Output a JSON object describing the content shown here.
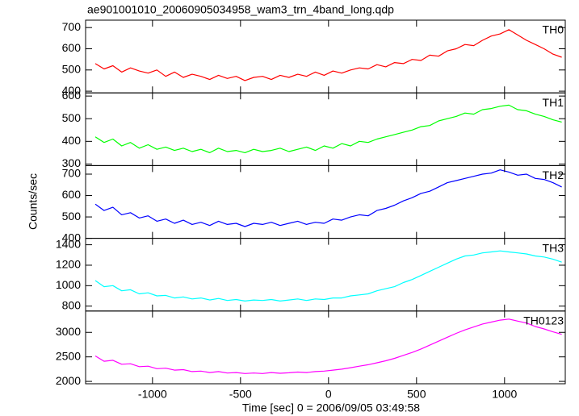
{
  "chart_data": {
    "type": "line",
    "title": "ae901001010_20060905034958_wam3_trn_4band_long.qdp",
    "xlabel": "Time [sec] 0 = 2006/09/05 03:49:58",
    "ylabel": "Counts/sec",
    "xlim": [
      -1380,
      1345
    ],
    "xticks": [
      -1000,
      -500,
      0,
      500,
      1000
    ],
    "x": [
      -1325,
      -1275,
      -1225,
      -1175,
      -1125,
      -1075,
      -1025,
      -975,
      -925,
      -875,
      -825,
      -775,
      -725,
      -675,
      -625,
      -575,
      -525,
      -475,
      -425,
      -375,
      -325,
      -275,
      -225,
      -175,
      -125,
      -75,
      -25,
      25,
      75,
      125,
      175,
      225,
      275,
      325,
      375,
      425,
      475,
      525,
      575,
      625,
      675,
      725,
      775,
      825,
      875,
      925,
      975,
      1025,
      1075,
      1125,
      1175,
      1225,
      1275,
      1325
    ],
    "panels": [
      {
        "name": "TH0",
        "color": "#ff0000",
        "ylim": [
          392,
          735
        ],
        "yticks": [
          400,
          500,
          600,
          700
        ],
        "values": [
          530,
          505,
          520,
          490,
          510,
          495,
          485,
          500,
          470,
          490,
          465,
          480,
          470,
          455,
          475,
          460,
          470,
          450,
          465,
          470,
          455,
          475,
          465,
          480,
          470,
          490,
          475,
          495,
          485,
          500,
          510,
          505,
          525,
          515,
          535,
          530,
          550,
          545,
          570,
          565,
          590,
          600,
          620,
          615,
          640,
          660,
          670,
          690,
          665,
          640,
          620,
          600,
          575,
          560
        ]
      },
      {
        "name": "TH1",
        "color": "#00ff00",
        "ylim": [
          293,
          614
        ],
        "yticks": [
          300,
          400,
          500,
          600
        ],
        "values": [
          420,
          395,
          410,
          380,
          395,
          370,
          385,
          365,
          375,
          360,
          370,
          355,
          365,
          350,
          370,
          355,
          360,
          350,
          365,
          355,
          360,
          370,
          355,
          365,
          375,
          360,
          380,
          370,
          390,
          380,
          400,
          395,
          410,
          420,
          430,
          440,
          450,
          465,
          470,
          490,
          500,
          510,
          525,
          520,
          540,
          545,
          555,
          560,
          540,
          535,
          520,
          510,
          495,
          485
        ]
      },
      {
        "name": "TH2",
        "color": "#0000ff",
        "ylim": [
          400,
          740
        ],
        "yticks": [
          400,
          500,
          600,
          700
        ],
        "values": [
          560,
          530,
          545,
          510,
          520,
          495,
          505,
          480,
          490,
          470,
          485,
          465,
          475,
          460,
          480,
          465,
          470,
          455,
          470,
          465,
          475,
          460,
          470,
          480,
          465,
          475,
          470,
          490,
          485,
          500,
          510,
          505,
          530,
          540,
          555,
          575,
          590,
          610,
          620,
          640,
          660,
          670,
          680,
          690,
          700,
          705,
          720,
          710,
          695,
          700,
          680,
          675,
          660,
          640
        ]
      },
      {
        "name": "TH3",
        "color": "#00ffff",
        "ylim": [
          752,
          1463
        ],
        "yticks": [
          800,
          1000,
          1200,
          1400
        ],
        "values": [
          1050,
          990,
          1000,
          950,
          960,
          920,
          930,
          900,
          905,
          880,
          890,
          870,
          880,
          860,
          875,
          855,
          865,
          850,
          860,
          855,
          865,
          850,
          860,
          870,
          855,
          870,
          865,
          880,
          880,
          900,
          910,
          920,
          950,
          970,
          990,
          1030,
          1060,
          1100,
          1140,
          1180,
          1220,
          1260,
          1290,
          1300,
          1320,
          1330,
          1340,
          1330,
          1320,
          1310,
          1290,
          1280,
          1260,
          1230
        ]
      },
      {
        "name": "TH0123",
        "color": "#ff00ff",
        "ylim": [
          1952,
          3435
        ],
        "yticks": [
          2000,
          2500,
          3000
        ],
        "values": [
          2520,
          2410,
          2430,
          2350,
          2360,
          2300,
          2310,
          2260,
          2270,
          2230,
          2240,
          2200,
          2210,
          2180,
          2200,
          2170,
          2180,
          2160,
          2170,
          2160,
          2180,
          2165,
          2175,
          2190,
          2180,
          2200,
          2210,
          2230,
          2250,
          2280,
          2310,
          2340,
          2380,
          2420,
          2470,
          2530,
          2590,
          2660,
          2740,
          2820,
          2900,
          2980,
          3050,
          3110,
          3170,
          3210,
          3250,
          3270,
          3230,
          3190,
          3120,
          3070,
          3010,
          2960
        ]
      }
    ]
  }
}
